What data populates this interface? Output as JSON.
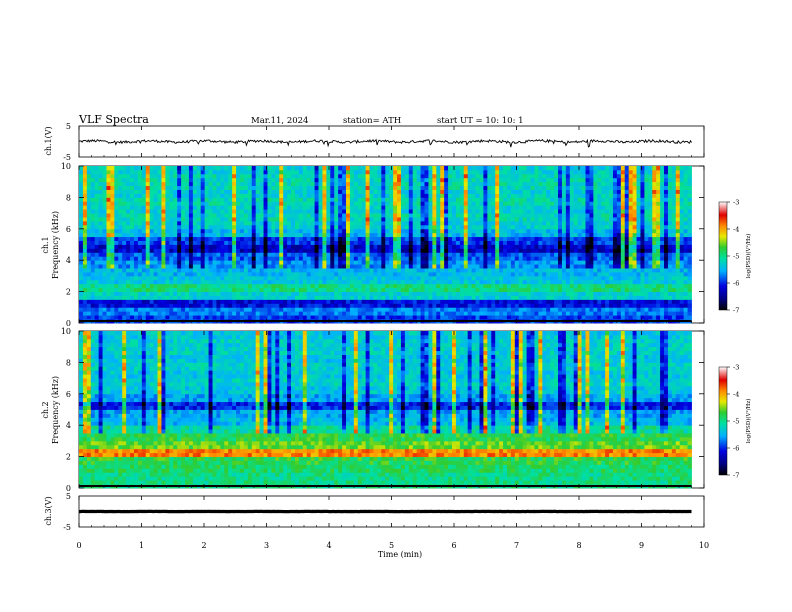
{
  "header": {
    "title": "VLF  Spectra",
    "date": "Mar.11, 2024",
    "station": "station= ATH",
    "start_ut": "start  UT  =    10: 10: 1"
  },
  "panels": {
    "ch1_wave": {
      "ylabel": "ch.1(V)",
      "ticks": [
        "5",
        "-5"
      ]
    },
    "ch1_spec": {
      "ylabel_1": "ch.1",
      "ylabel_2": "Frequency  (kHz)",
      "ticks": [
        "10",
        "8",
        "6",
        "4",
        "2",
        "0"
      ]
    },
    "ch2_spec": {
      "ylabel_1": "ch.2",
      "ylabel_2": "Frequency  (kHz)",
      "ticks": [
        "10",
        "8",
        "6",
        "4",
        "2",
        "0"
      ]
    },
    "ch3_wave": {
      "ylabel": "ch.3(V)",
      "ticks": [
        "5",
        "-5"
      ]
    }
  },
  "colorbar": {
    "label": "log(PSD)(V²/Hz)",
    "ticks": [
      "-3",
      "-4",
      "-5",
      "-6",
      "-7"
    ],
    "colors": [
      "#000000",
      "#0000d0",
      "#00b4ff",
      "#00e090",
      "#22cc22",
      "#e8e800",
      "#ff8800",
      "#dd0000",
      "#ffffff"
    ]
  },
  "xaxis": {
    "label": "Time  (min)",
    "ticks": [
      "0",
      "1",
      "2",
      "3",
      "4",
      "5",
      "6",
      "7",
      "8",
      "9",
      "10"
    ]
  },
  "chart_data": [
    {
      "type": "line",
      "title": "",
      "xlabel": "Time  (min)",
      "ylabel": "ch.1(V)",
      "xlim": [
        0,
        10
      ],
      "ylim": [
        -5,
        5
      ],
      "series": [
        {
          "mean": 0.0,
          "noise_amplitude": 0.7,
          "x_end": 9.8
        }
      ]
    },
    {
      "type": "heatmap",
      "xlabel": "Time  (min)",
      "ylabel": "ch.1 Frequency  (kHz)",
      "xlim": [
        0,
        10
      ],
      "ylim": [
        0,
        10
      ],
      "zlabel": "log(PSD)(V²/Hz)",
      "zlim": [
        -7,
        -3
      ],
      "x_end": 9.8,
      "freq_kHz": [
        0.25,
        0.75,
        1.25,
        1.75,
        2.25,
        2.75,
        3.25,
        3.75,
        4.25,
        4.75,
        5.25,
        5.75,
        6.25,
        6.75,
        7.25,
        7.75,
        8.25,
        8.75,
        9.25,
        9.75
      ],
      "mean_logpsd": [
        -6.0,
        -5.8,
        -6.2,
        -5.3,
        -5.0,
        -5.4,
        -5.5,
        -5.7,
        -5.9,
        -6.3,
        -6.0,
        -5.5,
        -5.3,
        -5.2,
        -5.3,
        -5.2,
        -5.3,
        -5.2,
        -5.2,
        -5.3
      ],
      "impulsive_events": "frequent vertical broadband spikes (sferics) across full band"
    },
    {
      "type": "heatmap",
      "xlabel": "Time  (min)",
      "ylabel": "ch.2 Frequency  (kHz)",
      "xlim": [
        0,
        10
      ],
      "ylim": [
        0,
        10
      ],
      "zlabel": "log(PSD)(V²/Hz)",
      "zlim": [
        -7,
        -3
      ],
      "x_end": 9.8,
      "freq_kHz": [
        0.25,
        0.75,
        1.25,
        1.75,
        2.25,
        2.75,
        3.25,
        3.75,
        4.25,
        4.75,
        5.25,
        5.75,
        6.25,
        6.75,
        7.25,
        7.75,
        8.25,
        8.75,
        9.25,
        9.75
      ],
      "mean_logpsd": [
        -5.0,
        -5.0,
        -4.9,
        -4.8,
        -3.9,
        -4.6,
        -4.8,
        -5.1,
        -5.5,
        -5.6,
        -6.1,
        -5.6,
        -5.4,
        -5.3,
        -5.4,
        -5.3,
        -5.4,
        -5.3,
        -5.3,
        -5.4
      ],
      "impulsive_events": "frequent vertical broadband spikes (sferics) across full band"
    },
    {
      "type": "line",
      "title": "",
      "xlabel": "Time  (min)",
      "ylabel": "ch.3(V)",
      "xlim": [
        0,
        10
      ],
      "ylim": [
        -5,
        5
      ],
      "series": [
        {
          "mean": 0.0,
          "noise_amplitude": 0.05,
          "x_end": 9.8
        }
      ]
    }
  ]
}
